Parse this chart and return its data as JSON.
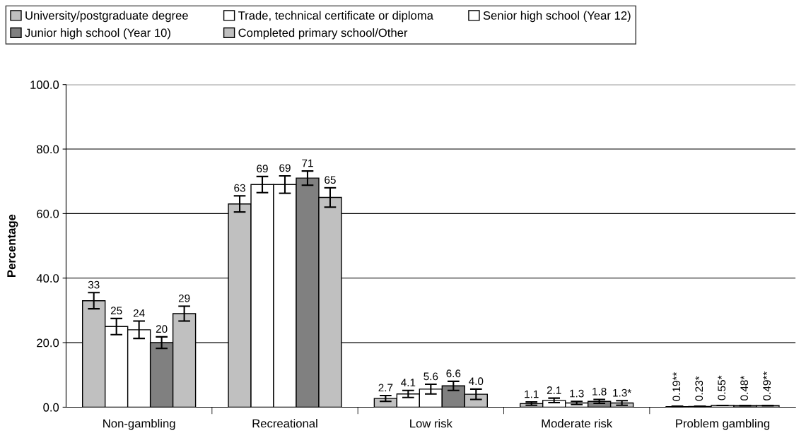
{
  "chart_data": {
    "type": "bar",
    "ylabel": "Percentage",
    "categories": [
      "Non-gambling",
      "Recreational",
      "Low risk",
      "Moderate risk",
      "Problem gambling"
    ],
    "series": [
      {
        "name": "University/postgraduate degree",
        "color": "#c0c0c0",
        "values": [
          33,
          63,
          2.7,
          1.1,
          0.19
        ],
        "errors": [
          2.5,
          2.5,
          0.9,
          0.5,
          0.1
        ],
        "value_labels": [
          "33",
          "63",
          "2.7",
          "1.1",
          "0.19**"
        ]
      },
      {
        "name": "Trade, technical certificate or diploma",
        "color": "#ffffff",
        "values": [
          25,
          69,
          4.1,
          2.1,
          0.23
        ],
        "errors": [
          2.5,
          2.5,
          1.1,
          0.7,
          0.1
        ],
        "value_labels": [
          "25",
          "69",
          "4.1",
          "2.1",
          "0.23*"
        ]
      },
      {
        "name": "Senior high school (Year 12)",
        "color": "#ffffff",
        "values": [
          24,
          69,
          5.6,
          1.3,
          0.55
        ],
        "errors": [
          2.7,
          2.7,
          1.5,
          0.5,
          null
        ],
        "value_labels": [
          "24",
          "69",
          "5.6",
          "1.3",
          "0.55*"
        ]
      },
      {
        "name": "Junior high school (Year 10)",
        "color": "#808080",
        "values": [
          20,
          71,
          6.6,
          1.8,
          0.48
        ],
        "errors": [
          1.8,
          2.2,
          1.4,
          0.6,
          null
        ],
        "value_labels": [
          "20",
          "71",
          "6.6",
          "1.8",
          "0.48*"
        ]
      },
      {
        "name": "Completed primary school/Other",
        "color": "#c0c0c0",
        "values": [
          29,
          65,
          4.0,
          1.3,
          0.49
        ],
        "errors": [
          2.3,
          3.0,
          1.6,
          0.7,
          null
        ],
        "value_labels": [
          "29",
          "65",
          "4.0",
          "1.3*",
          "0.49**"
        ]
      }
    ],
    "ylim": [
      0,
      100
    ],
    "yticks": [
      {
        "value": 0,
        "label": "0.0"
      },
      {
        "value": 20,
        "label": "20.0"
      },
      {
        "value": 40,
        "label": "40.0"
      },
      {
        "value": 60,
        "label": "60.0"
      },
      {
        "value": 80,
        "label": "80.0"
      },
      {
        "value": 100,
        "label": "100.0"
      }
    ],
    "grid": "y",
    "legend": "top"
  }
}
